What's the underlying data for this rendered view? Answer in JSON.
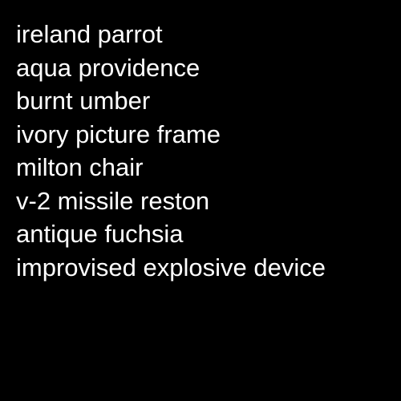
{
  "background_color": "#000000",
  "text_color": "#ffffff",
  "phrases": [
    "ireland parrot",
    "aqua providence",
    "burnt umber",
    "ivory picture frame",
    "milton chair",
    "v-2 missile reston",
    "antique fuchsia",
    "improvised explosive device"
  ]
}
